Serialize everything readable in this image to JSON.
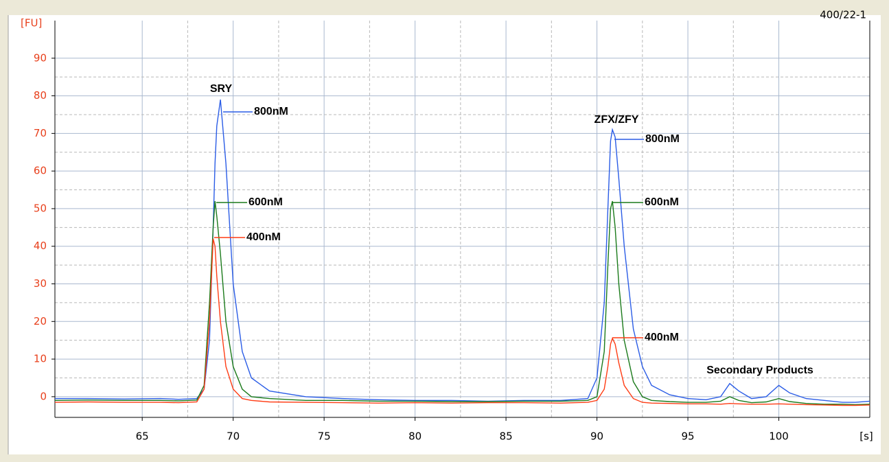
{
  "chart_data": {
    "type": "line",
    "title": "400/22-1",
    "x_label": "[s]",
    "y_label": "[FU]",
    "xlim": [
      60.2,
      105
    ],
    "ylim": [
      -5.5,
      100
    ],
    "xticks": [
      65,
      70,
      75,
      80,
      85,
      90,
      95,
      100
    ],
    "yticks": [
      0,
      10,
      20,
      30,
      40,
      50,
      60,
      70,
      80,
      90
    ],
    "grid": true,
    "x": [
      60.2,
      62,
      64,
      66,
      67,
      68,
      68.4,
      68.7,
      68.9,
      69.0,
      69.1,
      69.3,
      69.6,
      70,
      70.5,
      71,
      72,
      74,
      76,
      78,
      80,
      82,
      84,
      86,
      88,
      89.5,
      90,
      90.4,
      90.6,
      90.75,
      90.85,
      91,
      91.2,
      91.5,
      92,
      92.5,
      93,
      94,
      95,
      96,
      96.8,
      97.3,
      97.8,
      98.5,
      99.3,
      100,
      100.6,
      101.5,
      102.5,
      103.5,
      104.2,
      105
    ],
    "series": [
      {
        "name": "800nM",
        "color": "#2a5ce6",
        "values": [
          -0.5,
          -0.5,
          -0.6,
          -0.5,
          -0.7,
          -0.5,
          2,
          15,
          45,
          62,
          72,
          79,
          62,
          30,
          12,
          5,
          1.5,
          0,
          -0.5,
          -0.8,
          -1,
          -1,
          -1.2,
          -1,
          -1,
          -0.5,
          5,
          25,
          50,
          68,
          71,
          69,
          58,
          40,
          18,
          8,
          3,
          0.5,
          -0.5,
          -0.8,
          0,
          3.5,
          1.5,
          -0.5,
          0,
          3,
          1,
          -0.5,
          -1,
          -1.5,
          -1.5,
          -1.2
        ]
      },
      {
        "name": "600nM",
        "color": "#1a7a1a",
        "values": [
          -1,
          -0.9,
          -1,
          -1,
          -1.1,
          -0.9,
          3,
          25,
          45,
          52,
          48,
          38,
          20,
          8,
          2,
          0,
          -0.5,
          -1,
          -1,
          -1.2,
          -1.2,
          -1.3,
          -1.3,
          -1.2,
          -1.2,
          -1,
          0,
          12,
          35,
          50,
          52,
          45,
          30,
          15,
          4,
          0,
          -1,
          -1.3,
          -1.5,
          -1.5,
          -1.2,
          0,
          -1,
          -1.6,
          -1.4,
          -0.5,
          -1.3,
          -1.8,
          -2,
          -2,
          -2.1,
          -2
        ]
      },
      {
        "name": "400nM",
        "color": "#ff3c14",
        "values": [
          -1.5,
          -1.4,
          -1.5,
          -1.5,
          -1.6,
          -1.4,
          2,
          20,
          42,
          40,
          32,
          20,
          8,
          2,
          -0.5,
          -1,
          -1.4,
          -1.5,
          -1.6,
          -1.7,
          -1.6,
          -1.7,
          -1.6,
          -1.6,
          -1.7,
          -1.5,
          -1,
          2,
          8,
          14,
          15.5,
          14,
          9,
          3,
          -0.5,
          -1.5,
          -1.7,
          -1.8,
          -1.9,
          -1.9,
          -2,
          -1.8,
          -1.9,
          -2,
          -2,
          -1.9,
          -2,
          -2.1,
          -2.2,
          -2.3,
          -2.3,
          -2.2
        ]
      }
    ],
    "annotations": [
      "SRY",
      "ZFX/ZFY",
      "Secondary Products"
    ]
  }
}
